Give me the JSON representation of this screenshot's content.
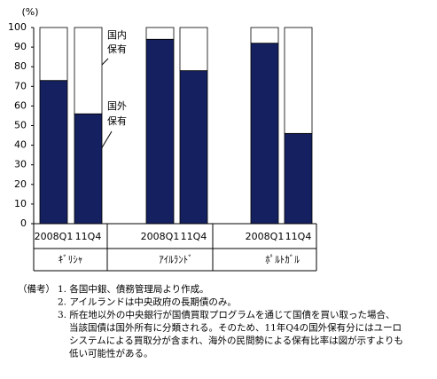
{
  "chart_data": {
    "type": "bar",
    "stacked": true,
    "y_label": "(%)",
    "categories": [
      "2008Q1",
      "11Q4",
      "2008Q1",
      "11Q4",
      "2008Q1",
      "11Q4"
    ],
    "groups": [
      "ｷﾞﾘｼｬ",
      "ｱｲﾙﾗﾝﾄﾞ",
      "ﾎﾟﾙﾄｶﾞﾙ"
    ],
    "series": [
      {
        "color": "#14205f",
        "values": [
          73,
          56,
          94,
          78,
          92,
          46
        ]
      },
      {
        "color": "#ffffff",
        "values": [
          27,
          44,
          6,
          22,
          8,
          54
        ]
      }
    ],
    "annotations": [
      [
        "国内",
        "保有"
      ],
      [
        "国外",
        "保有"
      ]
    ],
    "ylim": [
      0,
      100
    ],
    "yticks": [
      0,
      10,
      20,
      30,
      40,
      50,
      60,
      70,
      80,
      90,
      100
    ]
  },
  "notes": {
    "label": "（備考）",
    "items": [
      [
        "1. 各国中銀、債務管理局より作成。"
      ],
      [
        "2. アイルランドは中央政府の長期債のみ。"
      ],
      [
        "3. 所在地以外の中央銀行が国債買取プログラムを通じて国債を買い取った場合、",
        "当該国債は国外所有に分類される。そのため、11年Q4の国外保有分にはユーロ",
        "システムによる買取分が含まれ、海外の民間勢による保有比率は図が示すよりも",
        "低い可能性がある。"
      ]
    ]
  }
}
